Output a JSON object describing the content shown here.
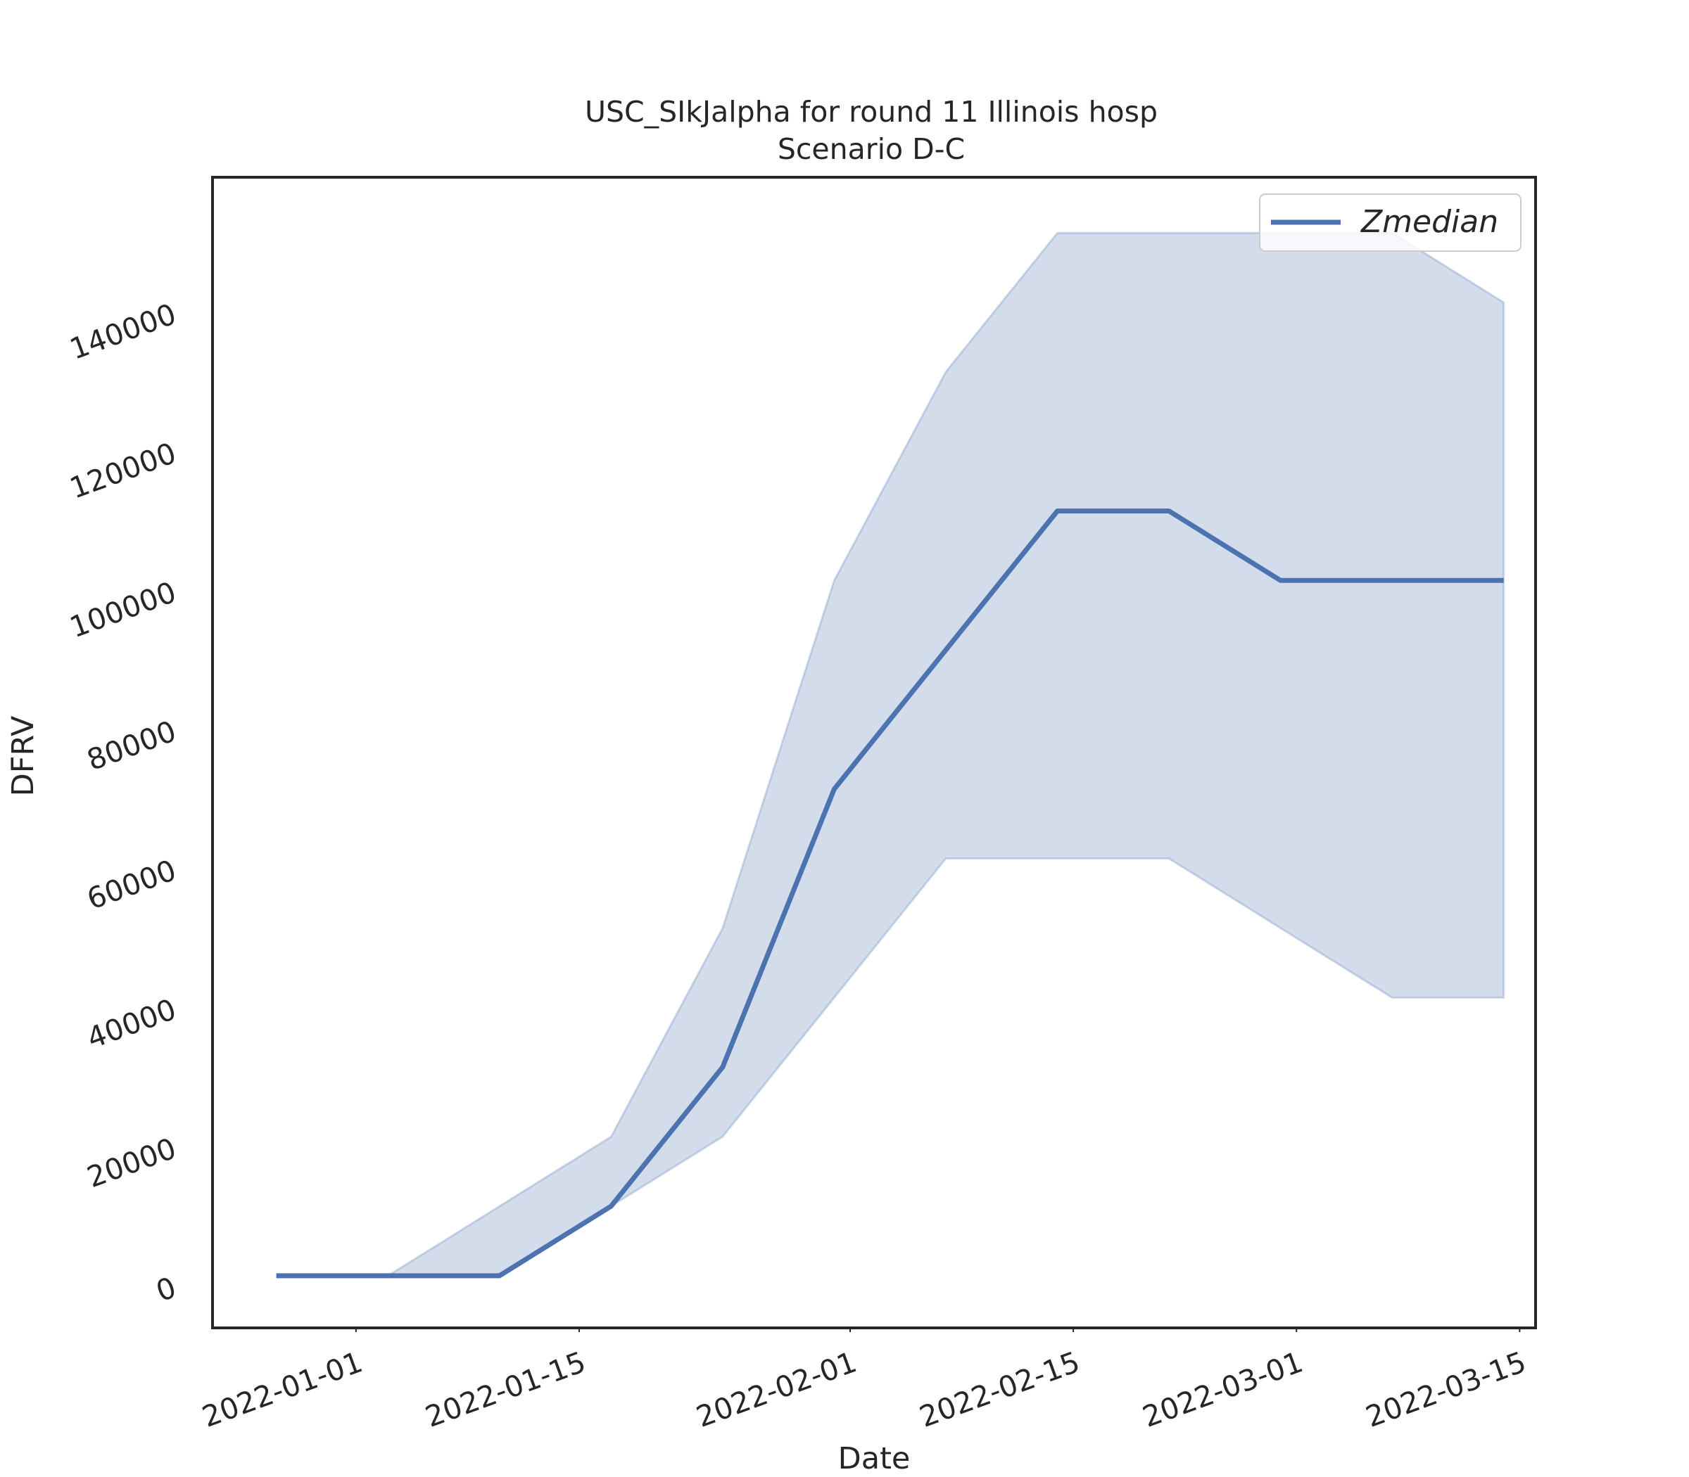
{
  "chart_data": {
    "type": "line",
    "title": "USC_SIkJalpha for round 11 Illinois hosp",
    "subtitle": "Scenario D-C",
    "xlabel": "Date",
    "ylabel": "DFRV",
    "x_ticks": [
      "2022-01-01",
      "2022-01-15",
      "2022-02-01",
      "2022-02-15",
      "2022-03-01",
      "2022-03-15"
    ],
    "y_ticks": [
      "0",
      "20000",
      "40000",
      "60000",
      "80000",
      "100000",
      "120000",
      "140000"
    ],
    "xlim": [
      "2021-12-23",
      "2022-03-16"
    ],
    "ylim": [
      -7500,
      158000
    ],
    "grid": false,
    "legend_placement": "top-right",
    "x": [
      "2021-12-27",
      "2022-01-03",
      "2022-01-10",
      "2022-01-17",
      "2022-01-24",
      "2022-01-31",
      "2022-02-07",
      "2022-02-14",
      "2022-02-21",
      "2022-02-28",
      "2022-03-07",
      "2022-03-14"
    ],
    "series": [
      {
        "name": "Zmedian",
        "color": "#4c72b0",
        "values": [
          0,
          0,
          0,
          10000,
          30000,
          70000,
          90000,
          110000,
          110000,
          100000,
          100000,
          100000
        ]
      }
    ],
    "band": {
      "color": "#4c72b0",
      "lower": [
        0,
        0,
        0,
        10000,
        20000,
        40000,
        60000,
        60000,
        60000,
        50000,
        40000,
        40000
      ],
      "upper": [
        0,
        0,
        10000,
        20000,
        50000,
        100000,
        130000,
        150000,
        150000,
        150000,
        150000,
        140000
      ]
    }
  }
}
